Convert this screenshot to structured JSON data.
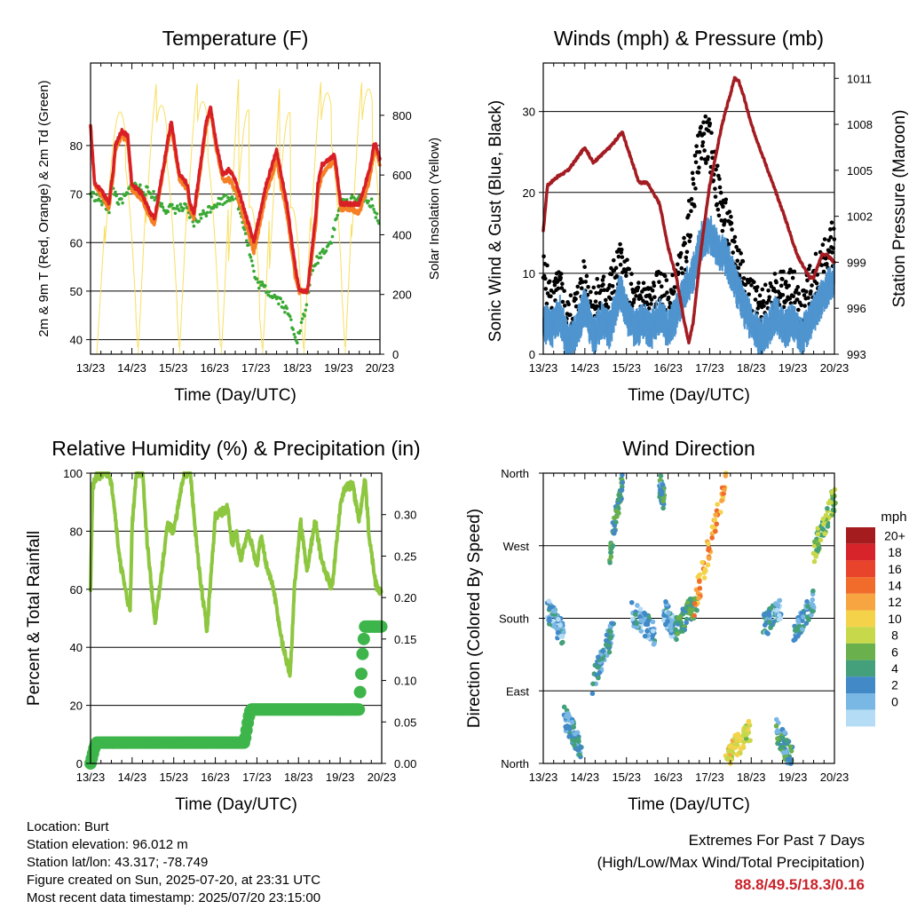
{
  "x_axis": {
    "tick_labels": [
      "13/23",
      "14/23",
      "15/23",
      "16/23",
      "17/23",
      "18/23",
      "19/23",
      "20/23"
    ],
    "label": "Time (Day/UTC)"
  },
  "colors": {
    "temp_2m": "#d81f26",
    "temp_9m": "#f57f25",
    "dewpoint": "#3aa935",
    "insolation": "#f8df62",
    "wind": "#4f94cf",
    "gust": "#000000",
    "pressure": "#a31c22",
    "rh": "#8dc63f",
    "rain": "#3db54a"
  },
  "colorbar": {
    "unit": "mph",
    "labels": [
      "20+",
      "18",
      "16",
      "14",
      "12",
      "10",
      "8",
      "6",
      "4",
      "2",
      "0"
    ],
    "colors": [
      "#a51c1f",
      "#d7242a",
      "#e8432b",
      "#f16b2b",
      "#f7a541",
      "#f4d34a",
      "#c8d84b",
      "#6ab04c",
      "#43a07a",
      "#4189c7",
      "#79b7e5",
      "#b4dcf4"
    ]
  },
  "chart_data": [
    {
      "type": "line",
      "title": "Temperature (F)",
      "xlabel": "Time (Day/UTC)",
      "ylabel": "2m & 9m T (Red, Orange) & 2m Td (Green)",
      "y2label": "Solar Insolation (Yellow)",
      "ylim": [
        37,
        97
      ],
      "y_ticks": [
        40,
        50,
        60,
        70,
        80
      ],
      "y2lim": [
        0,
        975
      ],
      "y2_ticks": [
        0,
        200,
        400,
        600,
        800
      ],
      "xlim": [
        0,
        7
      ],
      "grid": "horizontal",
      "series": [
        {
          "key": "temp_2m",
          "x": [
            0,
            0.1,
            0.25,
            0.45,
            0.5,
            0.55,
            0.6,
            0.75,
            0.9,
            1.0,
            1.25,
            1.45,
            1.55,
            1.85,
            1.95,
            2.15,
            2.35,
            2.4,
            2.5,
            2.8,
            2.9,
            3.05,
            3.2,
            3.35,
            3.5,
            3.85,
            3.95,
            4.25,
            4.5,
            4.75,
            4.95,
            5.05,
            5.25,
            5.45,
            5.5,
            5.6,
            5.9,
            5.95,
            6.05,
            6.3,
            6.5,
            6.75,
            6.85,
            6.9,
            7.0
          ],
          "y": [
            84,
            72,
            71,
            68,
            72,
            75,
            80,
            83,
            82,
            72,
            70,
            66,
            65,
            80,
            85,
            74,
            72,
            68,
            66,
            85,
            88,
            80,
            74,
            75,
            73,
            63,
            60,
            72,
            79,
            68,
            55,
            50,
            50,
            66,
            72,
            76,
            78,
            75,
            68,
            68,
            68,
            75,
            80,
            80,
            77
          ]
        },
        {
          "key": "temp_9m",
          "x": [
            0,
            0.1,
            0.25,
            0.45,
            0.5,
            0.55,
            0.6,
            0.75,
            0.9,
            1.0,
            1.25,
            1.45,
            1.55,
            1.85,
            1.95,
            2.15,
            2.35,
            2.4,
            2.5,
            2.8,
            2.9,
            3.05,
            3.2,
            3.35,
            3.5,
            3.85,
            3.95,
            4.25,
            4.5,
            4.75,
            4.95,
            5.05,
            5.25,
            5.45,
            5.5,
            5.6,
            5.9,
            5.95,
            6.05,
            6.3,
            6.5,
            6.75,
            6.85,
            6.9,
            7.0
          ],
          "y": [
            84,
            72,
            70,
            67,
            71,
            74,
            79,
            82,
            81,
            71,
            69,
            65,
            64,
            79,
            84,
            73,
            71,
            67,
            65,
            84,
            87,
            79,
            73,
            73,
            71,
            61,
            58,
            70,
            77,
            66,
            53,
            50,
            50,
            64,
            70,
            74,
            77,
            74,
            67,
            67,
            66,
            73,
            78,
            79,
            76
          ]
        },
        {
          "key": "dewpoint",
          "x": [
            0,
            0.2,
            0.45,
            0.5,
            0.7,
            0.9,
            1.0,
            1.5,
            1.8,
            2.3,
            2.5,
            3.0,
            3.5,
            3.7,
            4.0,
            4.3,
            4.6,
            4.8,
            5.0,
            5.2,
            5.3,
            5.45,
            5.6,
            5.8,
            6.05,
            6.5,
            6.8,
            7.0
          ],
          "y": [
            70,
            69,
            67,
            72,
            68,
            70,
            72,
            70,
            67,
            67,
            64,
            68,
            70,
            64,
            52,
            50,
            48,
            45,
            40,
            46,
            52,
            56,
            58,
            60,
            68,
            69,
            68,
            64
          ]
        },
        {
          "key": "insolation",
          "axis": "y2",
          "peaks": [
            0.65,
            1.65,
            2.65,
            3.66,
            4.66,
            5.66,
            6.66
          ],
          "peak_values": [
            900,
            920,
            930,
            960,
            940,
            950,
            960
          ]
        }
      ]
    },
    {
      "type": "line",
      "title": "Winds (mph) & Pressure (mb)",
      "xlabel": "Time (Day/UTC)",
      "ylabel": "Sonic Wind & Gust (Blue, Black)",
      "y2label": "Station Pressure (Maroon)",
      "ylim": [
        0,
        36
      ],
      "y_ticks": [
        0,
        10,
        20,
        30
      ],
      "y2lim": [
        993,
        1012
      ],
      "y2_ticks": [
        993,
        996,
        999,
        1002,
        1005,
        1008,
        1011
      ],
      "xlim": [
        0,
        7
      ],
      "grid": "horizontal",
      "series": [
        {
          "key": "wind",
          "x": [
            0,
            0.2,
            0.4,
            0.6,
            0.8,
            1.0,
            1.2,
            1.4,
            1.6,
            1.85,
            2.0,
            2.2,
            2.4,
            2.6,
            2.8,
            3.0,
            3.2,
            3.4,
            3.6,
            3.8,
            4.0,
            4.2,
            4.4,
            4.6,
            4.8,
            5.0,
            5.2,
            5.4,
            5.6,
            5.8,
            6.0,
            6.2,
            6.4,
            6.6,
            6.8,
            7.0
          ],
          "y": [
            4,
            3,
            5,
            1,
            3,
            6,
            2,
            4,
            3,
            8,
            5,
            3,
            4,
            3,
            5,
            3,
            5,
            8,
            10,
            14,
            15,
            13,
            12,
            9,
            6,
            4,
            2,
            3,
            5,
            3,
            4,
            2,
            4,
            6,
            8,
            9
          ]
        },
        {
          "key": "gust",
          "x": [
            0,
            0.2,
            0.4,
            0.6,
            0.8,
            1.0,
            1.2,
            1.4,
            1.6,
            1.85,
            2.0,
            2.2,
            2.4,
            2.6,
            2.8,
            3.0,
            3.2,
            3.4,
            3.6,
            3.8,
            4.0,
            4.2,
            4.4,
            4.6,
            4.8,
            5.0,
            5.2,
            5.4,
            5.6,
            5.8,
            6.0,
            6.2,
            6.4,
            6.6,
            6.8,
            7.0
          ],
          "y": [
            10,
            6,
            8,
            4,
            6,
            9,
            6,
            7,
            8,
            11,
            9,
            6,
            7,
            6,
            8,
            6,
            8,
            12,
            20,
            27,
            26,
            20,
            16,
            13,
            10,
            7,
            5,
            6,
            9,
            7,
            8,
            5,
            8,
            10,
            12,
            14
          ]
        },
        {
          "key": "pressure",
          "axis": "y2",
          "x": [
            0,
            0.1,
            0.3,
            0.6,
            1.0,
            1.2,
            1.6,
            1.9,
            2.3,
            2.5,
            2.8,
            3.0,
            3.2,
            3.4,
            3.5,
            3.6,
            3.8,
            4.0,
            4.3,
            4.6,
            4.7,
            4.8,
            5.0,
            5.4,
            5.8,
            6.1,
            6.4,
            6.5,
            6.7,
            6.8,
            7.0
          ],
          "y": [
            1001,
            1004,
            1004.5,
            1005,
            1006.5,
            1005.5,
            1006.5,
            1007.5,
            1004.2,
            1004.2,
            1002.8,
            1000,
            998,
            995,
            993.8,
            995,
            1000,
            1004,
            1008,
            1011,
            1010.8,
            1010,
            1008,
            1005,
            1002,
            999.5,
            998,
            998,
            999.5,
            999.5,
            999
          ]
        }
      ]
    },
    {
      "type": "line",
      "title": "Relative Humidity (%) & Precipitation (in)",
      "xlabel": "Time (Day/UTC)",
      "ylabel": "Percent & Total Rainfall",
      "ylim": [
        0,
        100
      ],
      "y_ticks": [
        0,
        20,
        40,
        60,
        80,
        100
      ],
      "y2lim": [
        0,
        0.35
      ],
      "y2_ticks": [
        0.0,
        0.05,
        0.1,
        0.15,
        0.2,
        0.25,
        0.3
      ],
      "xlim": [
        0,
        7
      ],
      "grid": "horizontal",
      "series": [
        {
          "key": "rh",
          "x": [
            0,
            0.05,
            0.15,
            0.45,
            0.55,
            0.7,
            0.95,
            1.0,
            1.1,
            1.25,
            1.35,
            1.55,
            1.85,
            2.0,
            2.25,
            2.4,
            2.55,
            2.65,
            2.8,
            3.0,
            3.3,
            3.4,
            3.5,
            3.6,
            3.8,
            4.0,
            4.1,
            4.2,
            4.4,
            4.6,
            4.8,
            4.9,
            5.05,
            5.2,
            5.4,
            5.55,
            5.8,
            6.0,
            6.1,
            6.3,
            6.45,
            6.6,
            6.7,
            6.85,
            7.0
          ],
          "y": [
            61,
            95,
            99,
            100,
            92,
            70,
            52,
            82,
            100,
            100,
            78,
            48,
            82,
            80,
            100,
            100,
            75,
            62,
            46,
            85,
            88,
            75,
            80,
            70,
            80,
            68,
            78,
            70,
            60,
            42,
            30,
            60,
            84,
            66,
            84,
            70,
            60,
            88,
            95,
            96,
            84,
            98,
            78,
            62,
            58
          ]
        },
        {
          "key": "rain",
          "axis": "y2",
          "x": [
            0,
            0.05,
            0.1,
            0.15,
            3.7,
            3.75,
            3.8,
            3.85,
            6.45,
            6.5,
            6.55,
            6.6,
            7.0
          ],
          "y": [
            0,
            0.01,
            0.02,
            0.025,
            0.025,
            0.04,
            0.055,
            0.065,
            0.065,
            0.1,
            0.14,
            0.165,
            0.165
          ]
        }
      ]
    },
    {
      "type": "scatter",
      "title": "Wind Direction",
      "xlabel": "Time (Day/UTC)",
      "ylabel": "Direction (Colored By Speed)",
      "y_ticks": [
        "North",
        "East",
        "South",
        "West",
        "North"
      ],
      "ylim": [
        0,
        360
      ],
      "xlim": [
        0,
        7
      ],
      "grid": "horizontal",
      "legend": "right",
      "segments": [
        {
          "x": [
            0.1,
            0.5
          ],
          "dir": [
            190,
            160
          ],
          "speed": 3
        },
        {
          "x": [
            0.5,
            0.9
          ],
          "dir": [
            60,
            20
          ],
          "speed": 4
        },
        {
          "x": [
            1.2,
            1.7
          ],
          "dir": [
            100,
            170
          ],
          "speed": 4
        },
        {
          "x": [
            1.6,
            1.9
          ],
          "dir": [
            260,
            350
          ],
          "speed": 6
        },
        {
          "x": [
            2.1,
            2.7
          ],
          "dir": [
            190,
            160
          ],
          "speed": 3
        },
        {
          "x": [
            2.8,
            2.9
          ],
          "dir": [
            345,
            330
          ],
          "speed": 5
        },
        {
          "x": [
            2.9,
            3.2
          ],
          "dir": [
            190,
            160
          ],
          "speed": 3
        },
        {
          "x": [
            3.2,
            3.7
          ],
          "dir": [
            170,
            200
          ],
          "speed": 6
        },
        {
          "x": [
            3.6,
            4.4
          ],
          "dir": [
            190,
            350
          ],
          "speed": 14
        },
        {
          "x": [
            4.4,
            5.0
          ],
          "dir": [
            5,
            45
          ],
          "speed": 11
        },
        {
          "x": [
            5.3,
            5.7
          ],
          "dir": [
            170,
            190
          ],
          "speed": 3
        },
        {
          "x": [
            5.6,
            6.0
          ],
          "dir": [
            40,
            5
          ],
          "speed": 5
        },
        {
          "x": [
            6.0,
            6.5
          ],
          "dir": [
            160,
            200
          ],
          "speed": 4
        },
        {
          "x": [
            6.5,
            7.0
          ],
          "dir": [
            260,
            330
          ],
          "speed": 8
        }
      ]
    }
  ],
  "info": {
    "location": "Location: Burt",
    "elevation": "Station elevation: 96.012 m",
    "latlon": "Station lat/lon: 43.317; -78.749",
    "created": "Figure created on Sun, 2025-07-20, at 23:31 UTC",
    "recent": "Most recent data timestamp: 2025/07/20 23:15:00"
  },
  "extremes": {
    "title": "Extremes For Past 7 Days",
    "subtitle": "(High/Low/Max Wind/Total Precipitation)",
    "values": "88.8/49.5/18.3/0.16"
  }
}
